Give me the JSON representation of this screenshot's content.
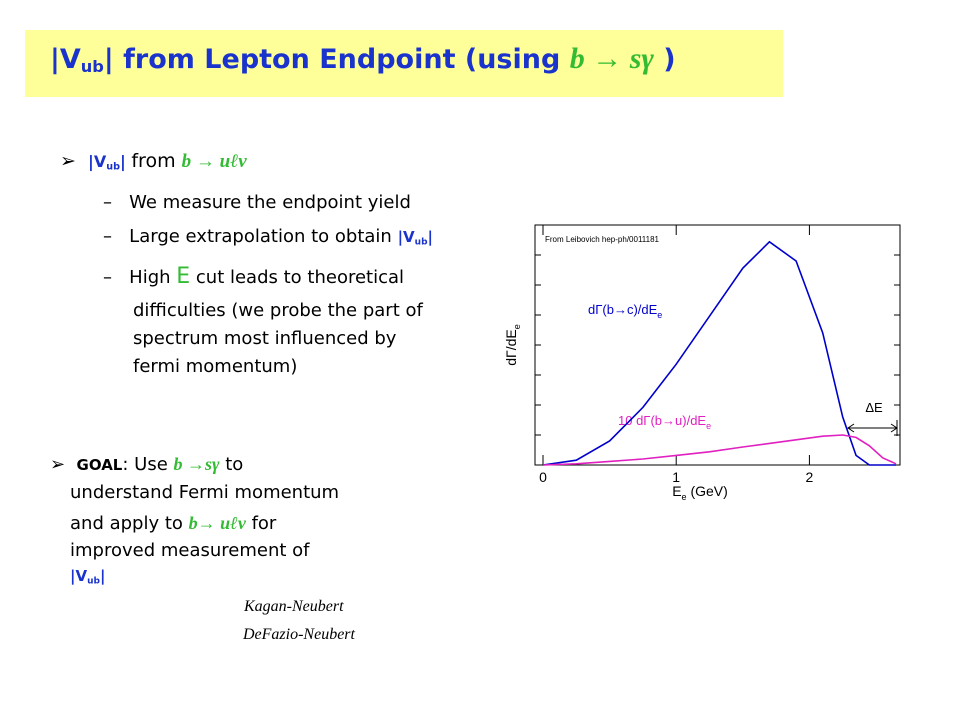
{
  "title": [
    "|V",
    "ub",
    "| from Lepton Endpoint  (using ",
    "b → sγ",
    " )"
  ],
  "bullet": [
    "|V",
    "ub",
    "| ",
    "from ",
    "b → uℓν"
  ],
  "sub_bullets": [
    [
      "We measure the endpoint yield"
    ],
    [
      "Large extrapolation to obtain ",
      "|V",
      "ub",
      "|"
    ],
    [
      "High ",
      "E",
      " cut leads to theoretical",
      "difficulties (we probe the part of",
      "spectrum most influenced by",
      "fermi momentum)"
    ]
  ],
  "goal": [
    [
      "GOAL",
      ": Use ",
      "b →sγ",
      "  to"
    ],
    [
      "understand Fermi momentum"
    ],
    [
      "and apply to ",
      "b→ uℓν",
      "  for"
    ],
    [
      "improved measurement of"
    ],
    [
      "|V",
      "ub",
      "|"
    ]
  ],
  "references": [
    "Kagan-Neubert",
    "DeFazio-Neubert"
  ],
  "chart_data": {
    "type": "line",
    "annotation": "From Leibovich hep-ph/0011181",
    "xlabel": [
      "E",
      "e",
      " (GeV)"
    ],
    "ylabel": [
      "dΓ/dE",
      "e"
    ],
    "x": [
      0,
      0.25,
      0.5,
      0.75,
      1,
      1.25,
      1.5,
      1.7,
      1.9,
      2.1,
      2.25,
      2.35,
      2.45,
      2.55,
      2.65
    ],
    "series": [
      {
        "name": [
          "dΓ(b→c)/dE",
          "e"
        ],
        "color": "#0000cc",
        "values": [
          0,
          0.02,
          0.1,
          0.24,
          0.42,
          0.62,
          0.82,
          0.93,
          0.85,
          0.55,
          0.2,
          0.04,
          0,
          0,
          0
        ]
      },
      {
        "name": [
          "10 dΓ(b→u)/dE",
          "e"
        ],
        "color": "#e020c0",
        "values": [
          0,
          0.005,
          0.015,
          0.025,
          0.04,
          0.055,
          0.075,
          0.09,
          0.105,
          0.12,
          0.125,
          0.115,
          0.08,
          0.03,
          0.005
        ]
      }
    ],
    "xlim": [
      -0.06,
      2.68
    ],
    "ylim": [
      0,
      1
    ],
    "xticks": [
      0,
      1,
      2
    ],
    "delta_label": "ΔE"
  }
}
